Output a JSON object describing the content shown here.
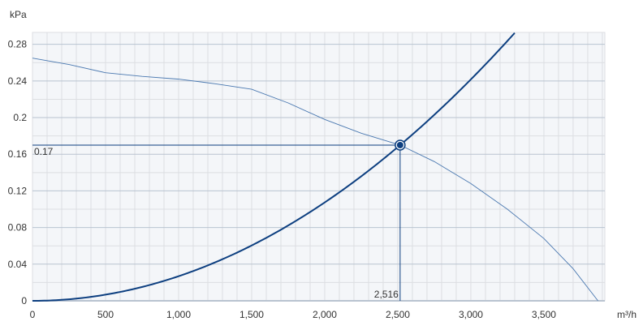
{
  "chart_data": {
    "type": "line",
    "ylabel": "kPa",
    "xlabel": "m³/h",
    "xlim": [
      0,
      3917
    ],
    "ylim": [
      0,
      0.293
    ],
    "x_ticks": [
      0,
      500,
      1000,
      1500,
      2000,
      2500,
      3000,
      3500
    ],
    "x_tick_labels": [
      "0",
      "500",
      "1,000",
      "1,500",
      "2,000",
      "2,500",
      "3,000",
      "3,500"
    ],
    "y_ticks": [
      0,
      0.04,
      0.08,
      0.12,
      0.16,
      0.2,
      0.24,
      0.28
    ],
    "y_tick_labels": [
      "0",
      "0.04",
      "0.08",
      "0.12",
      "0.16",
      "0.2",
      "0.24",
      "0.28"
    ],
    "grid": true,
    "series": [
      {
        "kind": "fan-curve",
        "color": "#4a78b0",
        "x": [
          0,
          250,
          500,
          750,
          1000,
          1250,
          1500,
          1750,
          2000,
          2250,
          2516,
          2750,
          3000,
          3250,
          3500,
          3700,
          3870
        ],
        "y": [
          0.265,
          0.258,
          0.249,
          0.245,
          0.242,
          0.237,
          0.231,
          0.216,
          0.198,
          0.183,
          0.17,
          0.152,
          0.128,
          0.1,
          0.068,
          0.035,
          0
        ]
      },
      {
        "kind": "system-curve",
        "color": "#0d3f80",
        "equation": "y = 0.17 * (x / 2516)^2",
        "x_range": [
          0,
          3340
        ]
      }
    ],
    "operating_point": {
      "x": 2516,
      "y": 0.17,
      "x_label": "2,516",
      "y_label": "0.17",
      "color": "#0d3f80"
    },
    "colors": {
      "plot_bg": "#f4f6f9",
      "grid_minor": "#dcdee2",
      "grid_major": "#b9c3d0"
    }
  }
}
